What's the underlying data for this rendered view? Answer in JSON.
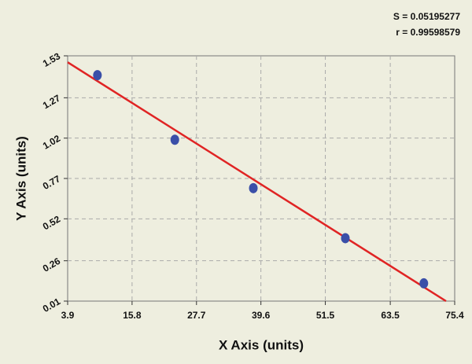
{
  "chart_data": {
    "type": "scatter",
    "annotations": [
      "S = 0.05195277",
      "r = 0.99598579"
    ],
    "x_label": "X Axis (units)",
    "y_label": "Y Axis (units)",
    "xlim": [
      3.9,
      75.4
    ],
    "xticks": [
      3.9,
      15.8,
      27.7,
      39.6,
      51.5,
      63.5,
      75.4
    ],
    "ylim": [
      0.01,
      1.53
    ],
    "yticks": [
      0.01,
      0.26,
      0.52,
      0.77,
      1.02,
      1.27,
      1.53
    ],
    "grid": true,
    "series": [
      {
        "color": "#3a4fa8",
        "x": [
          9.4,
          23.7,
          38.2,
          55.2,
          69.7
        ],
        "values": [
          1.41,
          1.01,
          0.71,
          0.4,
          0.12
        ]
      }
    ],
    "fit_line": {
      "color": "#e02424",
      "x": [
        3.9,
        73.8
      ],
      "values": [
        1.49,
        0.01
      ]
    }
  }
}
